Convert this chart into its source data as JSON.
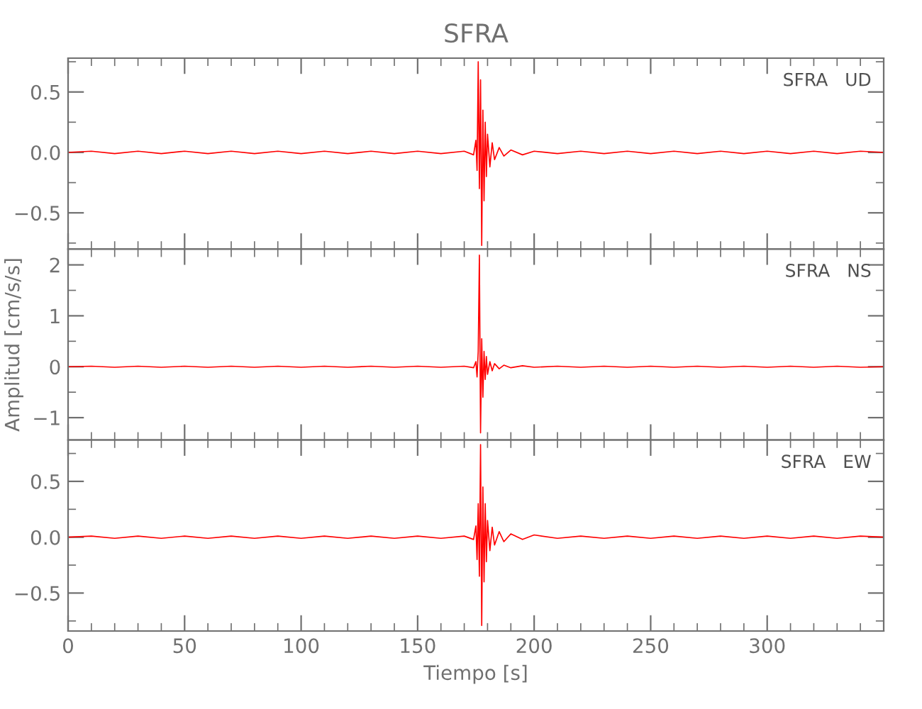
{
  "chart_data": [
    {
      "type": "line",
      "title": "SFRA",
      "annotations": [
        "SFRA   UD"
      ],
      "tick_labels": "y",
      "line_style": "solid",
      "marker": "none",
      "grid": false,
      "legend": false,
      "xlim": [
        0,
        350
      ],
      "ylim": [
        -0.8,
        0.78
      ],
      "xticks": [
        0,
        {
          "value": 10,
          "label": null
        },
        {
          "value": 20,
          "label": null
        },
        {
          "value": 30,
          "label": null
        },
        {
          "value": 40,
          "label": null
        },
        50,
        {
          "value": 60,
          "label": null
        },
        {
          "value": 70,
          "label": null
        },
        {
          "value": 80,
          "label": null
        },
        {
          "value": 90,
          "label": null
        },
        100,
        {
          "value": 110,
          "label": null
        },
        {
          "value": 120,
          "label": null
        },
        {
          "value": 130,
          "label": null
        },
        {
          "value": 140,
          "label": null
        },
        150,
        {
          "value": 160,
          "label": null
        },
        {
          "value": 170,
          "label": null
        },
        {
          "value": 180,
          "label": null
        },
        {
          "value": 190,
          "label": null
        },
        200,
        {
          "value": 210,
          "label": null
        },
        {
          "value": 220,
          "label": null
        },
        {
          "value": 230,
          "label": null
        },
        {
          "value": 240,
          "label": null
        },
        250,
        {
          "value": 260,
          "label": null
        },
        {
          "value": 270,
          "label": null
        },
        {
          "value": 280,
          "label": null
        },
        {
          "value": 290,
          "label": null
        },
        300,
        {
          "value": 310,
          "label": null
        },
        {
          "value": 320,
          "label": null
        },
        {
          "value": 330,
          "label": null
        },
        {
          "value": 340,
          "label": null
        }
      ],
      "yticks": [
        {
          "value": -0.75,
          "label": null
        },
        {
          "value": -0.5,
          "label": "−0.5"
        },
        {
          "value": -0.25,
          "label": null
        },
        {
          "value": 0,
          "label": "0.0"
        },
        {
          "value": 0.25,
          "label": null
        },
        0.5,
        {
          "value": 0.75,
          "label": null
        }
      ],
      "series": [
        {
          "color": "#ff0000",
          "x": [
            0,
            10,
            20,
            30,
            40,
            50,
            60,
            70,
            80,
            90,
            100,
            110,
            120,
            130,
            140,
            150,
            160,
            170,
            174,
            175,
            175.5,
            176,
            176.5,
            177,
            177.5,
            178,
            178.5,
            179,
            179.5,
            180,
            181,
            182,
            183,
            185,
            187,
            190,
            195,
            200,
            210,
            220,
            230,
            240,
            250,
            260,
            270,
            280,
            290,
            300,
            310,
            320,
            330,
            340,
            350
          ],
          "values": [
            0,
            0.01,
            -0.01,
            0.01,
            -0.01,
            0.01,
            -0.01,
            0.01,
            -0.01,
            0.01,
            -0.01,
            0.01,
            -0.01,
            0.01,
            -0.01,
            0.01,
            -0.01,
            0.01,
            -0.02,
            0.1,
            -0.15,
            0.75,
            -0.3,
            0.6,
            -0.77,
            0.35,
            -0.4,
            0.25,
            -0.2,
            0.15,
            -0.12,
            0.08,
            -0.06,
            0.04,
            -0.03,
            0.02,
            -0.02,
            0.01,
            -0.01,
            0.01,
            -0.01,
            0.01,
            -0.01,
            0.01,
            -0.01,
            0.01,
            -0.01,
            0.01,
            -0.01,
            0.01,
            -0.01,
            0.01,
            0
          ]
        }
      ]
    },
    {
      "type": "line",
      "ylabel": "Amplitud [cm/s/s]",
      "annotations": [
        "SFRA   NS"
      ],
      "tick_labels": "y",
      "line_style": "solid",
      "marker": "none",
      "grid": false,
      "legend": false,
      "xlim": [
        0,
        350
      ],
      "ylim": [
        -1.44,
        2.31
      ],
      "xticks": [
        0,
        {
          "value": 10,
          "label": null
        },
        {
          "value": 20,
          "label": null
        },
        {
          "value": 30,
          "label": null
        },
        {
          "value": 40,
          "label": null
        },
        50,
        {
          "value": 60,
          "label": null
        },
        {
          "value": 70,
          "label": null
        },
        {
          "value": 80,
          "label": null
        },
        {
          "value": 90,
          "label": null
        },
        100,
        {
          "value": 110,
          "label": null
        },
        {
          "value": 120,
          "label": null
        },
        {
          "value": 130,
          "label": null
        },
        {
          "value": 140,
          "label": null
        },
        150,
        {
          "value": 160,
          "label": null
        },
        {
          "value": 170,
          "label": null
        },
        {
          "value": 180,
          "label": null
        },
        {
          "value": 190,
          "label": null
        },
        200,
        {
          "value": 210,
          "label": null
        },
        {
          "value": 220,
          "label": null
        },
        {
          "value": 230,
          "label": null
        },
        {
          "value": 240,
          "label": null
        },
        250,
        {
          "value": 260,
          "label": null
        },
        {
          "value": 270,
          "label": null
        },
        {
          "value": 280,
          "label": null
        },
        {
          "value": 290,
          "label": null
        },
        300,
        {
          "value": 310,
          "label": null
        },
        {
          "value": 320,
          "label": null
        },
        {
          "value": 330,
          "label": null
        },
        {
          "value": 340,
          "label": null
        }
      ],
      "yticks": [
        {
          "value": -1,
          "label": "−1"
        },
        {
          "value": -0.5,
          "label": null
        },
        0,
        {
          "value": 0.5,
          "label": null
        },
        1,
        {
          "value": 1.5,
          "label": null
        },
        2
      ],
      "series": [
        {
          "color": "#ff0000",
          "x": [
            0,
            10,
            20,
            30,
            40,
            50,
            60,
            70,
            80,
            90,
            100,
            110,
            120,
            130,
            140,
            150,
            160,
            170,
            174,
            175,
            175.5,
            176,
            176.5,
            177,
            177.5,
            178,
            178.5,
            179,
            179.5,
            180,
            181,
            182,
            183,
            185,
            187,
            190,
            195,
            200,
            210,
            220,
            230,
            240,
            250,
            260,
            270,
            280,
            290,
            300,
            310,
            320,
            330,
            340,
            350
          ],
          "values": [
            0,
            0.01,
            -0.01,
            0.01,
            -0.01,
            0.01,
            -0.01,
            0.01,
            -0.01,
            0.01,
            -0.01,
            0.01,
            -0.01,
            0.01,
            -0.01,
            0.01,
            -0.01,
            0.01,
            -0.02,
            0.1,
            -0.2,
            0.3,
            2.19,
            -1.3,
            0.55,
            -0.6,
            0.3,
            -0.25,
            0.2,
            -0.15,
            0.1,
            -0.08,
            0.06,
            -0.04,
            0.03,
            -0.02,
            0.02,
            -0.01,
            0.01,
            -0.01,
            0.01,
            -0.01,
            0.01,
            -0.01,
            0.01,
            -0.01,
            0.01,
            -0.01,
            0.01,
            -0.01,
            0.01,
            -0.01,
            0
          ]
        }
      ]
    },
    {
      "type": "line",
      "xlabel": "Tiempo [s]",
      "annotations": [
        "SFRA   EW"
      ],
      "line_style": "solid",
      "marker": "none",
      "grid": false,
      "legend": false,
      "xlim": [
        0,
        350
      ],
      "ylim": [
        -0.84,
        0.87
      ],
      "xticks": [
        0,
        {
          "value": 10,
          "label": null
        },
        {
          "value": 20,
          "label": null
        },
        {
          "value": 30,
          "label": null
        },
        {
          "value": 40,
          "label": null
        },
        50,
        {
          "value": 60,
          "label": null
        },
        {
          "value": 70,
          "label": null
        },
        {
          "value": 80,
          "label": null
        },
        {
          "value": 90,
          "label": null
        },
        100,
        {
          "value": 110,
          "label": null
        },
        {
          "value": 120,
          "label": null
        },
        {
          "value": 130,
          "label": null
        },
        {
          "value": 140,
          "label": null
        },
        150,
        {
          "value": 160,
          "label": null
        },
        {
          "value": 170,
          "label": null
        },
        {
          "value": 180,
          "label": null
        },
        {
          "value": 190,
          "label": null
        },
        200,
        {
          "value": 210,
          "label": null
        },
        {
          "value": 220,
          "label": null
        },
        {
          "value": 230,
          "label": null
        },
        {
          "value": 240,
          "label": null
        },
        250,
        {
          "value": 260,
          "label": null
        },
        {
          "value": 270,
          "label": null
        },
        {
          "value": 280,
          "label": null
        },
        {
          "value": 290,
          "label": null
        },
        300,
        {
          "value": 310,
          "label": null
        },
        {
          "value": 320,
          "label": null
        },
        {
          "value": 330,
          "label": null
        },
        {
          "value": 340,
          "label": null
        }
      ],
      "yticks": [
        {
          "value": -0.75,
          "label": null
        },
        {
          "value": -0.5,
          "label": "−0.5"
        },
        {
          "value": -0.25,
          "label": null
        },
        {
          "value": 0,
          "label": "0.0"
        },
        {
          "value": 0.25,
          "label": null
        },
        0.5,
        {
          "value": 0.75,
          "label": null
        }
      ],
      "series": [
        {
          "color": "#ff0000",
          "x": [
            0,
            10,
            20,
            30,
            40,
            50,
            60,
            70,
            80,
            90,
            100,
            110,
            120,
            130,
            140,
            150,
            160,
            170,
            174,
            175,
            175.5,
            176,
            176.5,
            177,
            177.5,
            178,
            178.5,
            179,
            179.5,
            180,
            181,
            182,
            183,
            185,
            187,
            190,
            195,
            200,
            210,
            220,
            230,
            240,
            250,
            260,
            270,
            280,
            290,
            300,
            310,
            320,
            330,
            340,
            350
          ],
          "values": [
            0,
            0.01,
            -0.01,
            0.01,
            -0.01,
            0.01,
            -0.01,
            0.01,
            -0.01,
            0.01,
            -0.01,
            0.01,
            -0.01,
            0.01,
            -0.01,
            0.01,
            -0.01,
            0.01,
            -0.02,
            0.1,
            -0.2,
            0.3,
            -0.35,
            0.83,
            -0.79,
            0.45,
            -0.4,
            0.3,
            -0.22,
            0.15,
            -0.12,
            0.09,
            -0.07,
            0.05,
            -0.04,
            0.03,
            -0.02,
            0.02,
            -0.01,
            0.01,
            -0.01,
            0.01,
            -0.01,
            0.01,
            -0.01,
            0.01,
            -0.01,
            0.01,
            -0.01,
            0.01,
            -0.01,
            0.01,
            0
          ]
        }
      ]
    }
  ]
}
